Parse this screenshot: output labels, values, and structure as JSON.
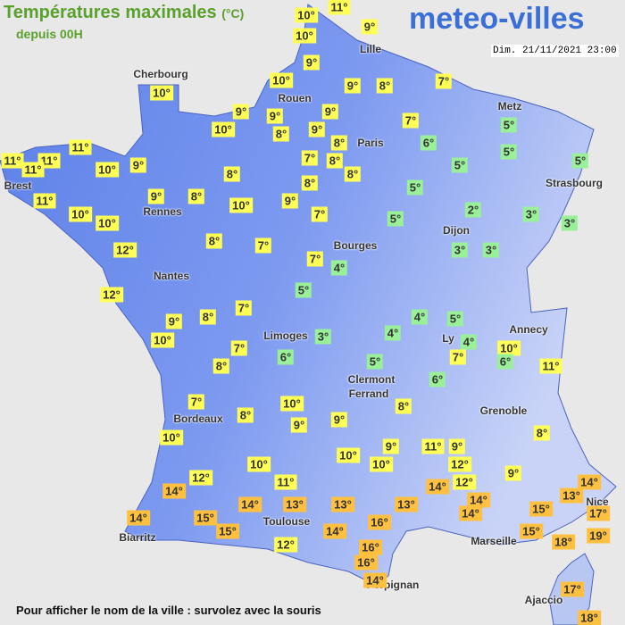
{
  "header": {
    "title": "Températures maximales",
    "unit": "(°C)",
    "subtitle": "depuis 00H",
    "logo": "meteo-villes",
    "date": "Dim. 21/11/2021 23:00"
  },
  "cities": [
    "Cherbourg",
    "Lille",
    "Rouen",
    "Paris",
    "Metz",
    "Strasbourg",
    "Brest",
    "Rennes",
    "Dijon",
    "Nantes",
    "Bourges",
    "Annecy",
    "Limoges",
    "Ly",
    "Clermont",
    "Ferrand",
    "Grenoble",
    "Bordeaux",
    "Nice",
    "Toulouse",
    "Marseille",
    "Biarritz",
    "Perpignan",
    "Ajaccio"
  ],
  "temperatures": [
    {
      "value": 10,
      "label": "10°"
    },
    {
      "value": 11,
      "label": "11°"
    },
    {
      "value": 10,
      "label": "10°"
    },
    {
      "value": 9,
      "label": "9°"
    },
    {
      "value": 9,
      "label": "9°"
    },
    {
      "value": 10,
      "label": "10°"
    },
    {
      "value": 9,
      "label": "9°"
    },
    {
      "value": 8,
      "label": "8°"
    },
    {
      "value": 7,
      "label": "7°"
    },
    {
      "value": 10,
      "label": "10°"
    },
    {
      "value": 9,
      "label": "9°"
    },
    {
      "value": 9,
      "label": "9°"
    },
    {
      "value": 9,
      "label": "9°"
    },
    {
      "value": 10,
      "label": "10°"
    },
    {
      "value": 8,
      "label": "8°"
    },
    {
      "value": 9,
      "label": "9°"
    },
    {
      "value": 8,
      "label": "8°"
    },
    {
      "value": 7,
      "label": "7°"
    },
    {
      "value": 6,
      "label": "6°"
    },
    {
      "value": 5,
      "label": "5°"
    },
    {
      "value": 5,
      "label": "5°"
    },
    {
      "value": 5,
      "label": "5°"
    },
    {
      "value": 11,
      "label": "11°"
    },
    {
      "value": 11,
      "label": "11°"
    },
    {
      "value": 11,
      "label": "11°"
    },
    {
      "value": 11,
      "label": "11°"
    },
    {
      "value": 10,
      "label": "10°"
    },
    {
      "value": 9,
      "label": "9°"
    },
    {
      "value": 7,
      "label": "7°"
    },
    {
      "value": 8,
      "label": "8°"
    },
    {
      "value": 8,
      "label": "8°"
    },
    {
      "value": 5,
      "label": "5°"
    },
    {
      "value": 8,
      "label": "8°"
    },
    {
      "value": 8,
      "label": "8°"
    },
    {
      "value": 5,
      "label": "5°"
    },
    {
      "value": 11,
      "label": "11°"
    },
    {
      "value": 9,
      "label": "9°"
    },
    {
      "value": 8,
      "label": "8°"
    },
    {
      "value": 10,
      "label": "10°"
    },
    {
      "value": 9,
      "label": "9°"
    },
    {
      "value": 10,
      "label": "10°"
    },
    {
      "value": 10,
      "label": "10°"
    },
    {
      "value": 7,
      "label": "7°"
    },
    {
      "value": 5,
      "label": "5°"
    },
    {
      "value": 2,
      "label": "2°"
    },
    {
      "value": 3,
      "label": "3°"
    },
    {
      "value": 3,
      "label": "3°"
    },
    {
      "value": 8,
      "label": "8°"
    },
    {
      "value": 7,
      "label": "7°"
    },
    {
      "value": 12,
      "label": "12°"
    },
    {
      "value": 3,
      "label": "3°"
    },
    {
      "value": 3,
      "label": "3°"
    },
    {
      "value": 7,
      "label": "7°"
    },
    {
      "value": 4,
      "label": "4°"
    },
    {
      "value": 5,
      "label": "5°"
    },
    {
      "value": 12,
      "label": "12°"
    },
    {
      "value": 7,
      "label": "7°"
    },
    {
      "value": 8,
      "label": "8°"
    },
    {
      "value": 9,
      "label": "9°"
    },
    {
      "value": 4,
      "label": "4°"
    },
    {
      "value": 5,
      "label": "5°"
    },
    {
      "value": 10,
      "label": "10°"
    },
    {
      "value": 3,
      "label": "3°"
    },
    {
      "value": 4,
      "label": "4°"
    },
    {
      "value": 4,
      "label": "4°"
    },
    {
      "value": 10,
      "label": "10°"
    },
    {
      "value": 6,
      "label": "6°"
    },
    {
      "value": 7,
      "label": "7°"
    },
    {
      "value": 8,
      "label": "8°"
    },
    {
      "value": 5,
      "label": "5°"
    },
    {
      "value": 7,
      "label": "7°"
    },
    {
      "value": 6,
      "label": "6°"
    },
    {
      "value": 11,
      "label": "11°"
    },
    {
      "value": 6,
      "label": "6°"
    },
    {
      "value": 7,
      "label": "7°"
    },
    {
      "value": 8,
      "label": "8°"
    },
    {
      "value": 10,
      "label": "10°"
    },
    {
      "value": 8,
      "label": "8°"
    },
    {
      "value": 9,
      "label": "9°"
    },
    {
      "value": 9,
      "label": "9°"
    },
    {
      "value": 10,
      "label": "10°"
    },
    {
      "value": 8,
      "label": "8°"
    },
    {
      "value": 9,
      "label": "9°"
    },
    {
      "value": 11,
      "label": "11°"
    },
    {
      "value": 9,
      "label": "9°"
    },
    {
      "value": 10,
      "label": "10°"
    },
    {
      "value": 10,
      "label": "10°"
    },
    {
      "value": 10,
      "label": "10°"
    },
    {
      "value": 12,
      "label": "12°"
    },
    {
      "value": 9,
      "label": "9°"
    },
    {
      "value": 12,
      "label": "12°"
    },
    {
      "value": 11,
      "label": "11°"
    },
    {
      "value": 12,
      "label": "12°"
    },
    {
      "value": 14,
      "label": "14°"
    },
    {
      "value": 14,
      "label": "14°"
    },
    {
      "value": 14,
      "label": "14°"
    },
    {
      "value": 13,
      "label": "13°"
    },
    {
      "value": 14,
      "label": "14°"
    },
    {
      "value": 14,
      "label": "14°"
    },
    {
      "value": 13,
      "label": "13°"
    },
    {
      "value": 13,
      "label": "13°"
    },
    {
      "value": 13,
      "label": "13°"
    },
    {
      "value": 14,
      "label": "14°"
    },
    {
      "value": 15,
      "label": "15°"
    },
    {
      "value": 17,
      "label": "17°"
    },
    {
      "value": 14,
      "label": "14°"
    },
    {
      "value": 15,
      "label": "15°"
    },
    {
      "value": 16,
      "label": "16°"
    },
    {
      "value": 14,
      "label": "14°"
    },
    {
      "value": 15,
      "label": "15°"
    },
    {
      "value": 15,
      "label": "15°"
    },
    {
      "value": 19,
      "label": "19°"
    },
    {
      "value": 12,
      "label": "12°"
    },
    {
      "value": 18,
      "label": "18°"
    },
    {
      "value": 16,
      "label": "16°"
    },
    {
      "value": 16,
      "label": "16°"
    },
    {
      "value": 14,
      "label": "14°"
    },
    {
      "value": 17,
      "label": "17°"
    },
    {
      "value": 18,
      "label": "18°"
    }
  ],
  "footer": "Pour afficher le nom de la ville : survolez avec la souris"
}
